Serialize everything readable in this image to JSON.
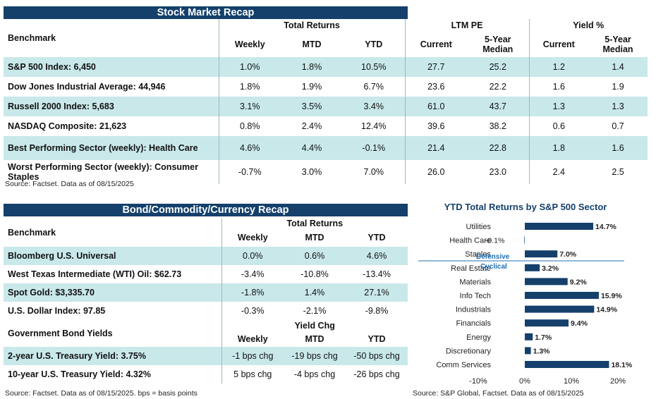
{
  "stock": {
    "title": "Stock Market Recap",
    "header": {
      "benchmark": "Benchmark",
      "total_returns": "Total Returns",
      "ltm_pe": "LTM PE",
      "yield": "Yield %",
      "weekly": "Weekly",
      "mtd": "MTD",
      "ytd": "YTD",
      "current": "Current",
      "median": "5-Year Median",
      "current2": "Current",
      "median2": "5-Year Median"
    },
    "rows": [
      {
        "label": "S&P 500 Index: 6,450",
        "weekly": "1.0%",
        "mtd": "1.8%",
        "ytd": "10.5%",
        "pe_cur": "27.7",
        "pe_med": "25.2",
        "y_cur": "1.2",
        "y_med": "1.4"
      },
      {
        "label": "Dow Jones Industrial Average: 44,946",
        "weekly": "1.8%",
        "mtd": "1.9%",
        "ytd": "6.7%",
        "pe_cur": "23.6",
        "pe_med": "22.2",
        "y_cur": "1.6",
        "y_med": "1.9"
      },
      {
        "label": "Russell 2000 Index: 5,683",
        "weekly": "3.1%",
        "mtd": "3.5%",
        "ytd": "3.4%",
        "pe_cur": "61.0",
        "pe_med": "43.7",
        "y_cur": "1.3",
        "y_med": "1.3"
      },
      {
        "label": "NASDAQ Composite: 21,623",
        "weekly": "0.8%",
        "mtd": "2.4%",
        "ytd": "12.4%",
        "pe_cur": "39.6",
        "pe_med": "38.2",
        "y_cur": "0.6",
        "y_med": "0.7"
      },
      {
        "label": "Best Performing Sector (weekly): Health Care",
        "weekly": "4.6%",
        "mtd": "4.4%",
        "ytd": "-0.1%",
        "pe_cur": "21.4",
        "pe_med": "22.8",
        "y_cur": "1.8",
        "y_med": "1.6"
      },
      {
        "label": "Worst Performing Sector (weekly): Consumer Staples",
        "weekly": "-0.7%",
        "mtd": "3.0%",
        "ytd": "7.0%",
        "pe_cur": "26.0",
        "pe_med": "23.0",
        "y_cur": "2.4",
        "y_med": "2.5"
      }
    ],
    "source": "Source: Factset. Data as of 08/15/2025"
  },
  "bond": {
    "title": "Bond/Commodity/Currency Recap",
    "header": {
      "benchmark": "Benchmark",
      "total_returns": "Total Returns",
      "weekly": "Weekly",
      "mtd": "MTD",
      "ytd": "YTD"
    },
    "rows": [
      {
        "label": "Bloomberg U.S. Universal",
        "weekly": "0.0%",
        "mtd": "0.6%",
        "ytd": "4.6%"
      },
      {
        "label": "West Texas Intermediate (WTI) Oil: $62.73",
        "weekly": "-3.4%",
        "mtd": "-10.8%",
        "ytd": "-13.4%"
      },
      {
        "label": "Spot Gold: $3,335.70",
        "weekly": "-1.8%",
        "mtd": "1.4%",
        "ytd": "27.1%"
      },
      {
        "label": "U.S. Dollar Index: 97.85",
        "weekly": "-0.3%",
        "mtd": "-2.1%",
        "ytd": "-9.8%"
      }
    ],
    "gov_header": {
      "label": "Government Bond Yields",
      "yield_chg": "Yield Chg",
      "weekly": "Weekly",
      "mtd": "MTD",
      "ytd": "YTD"
    },
    "gov_rows": [
      {
        "label": "2-year U.S. Treasury Yield: 3.75%",
        "weekly": "-1 bps chg",
        "mtd": "-19 bps chg",
        "ytd": "-50 bps chg"
      },
      {
        "label": "10-year U.S. Treasury Yield: 4.32%",
        "weekly": "5 bps chg",
        "mtd": "-4 bps chg",
        "ytd": "-26 bps chg"
      }
    ],
    "source": "Source: Factset. Data as of 08/15/2025. bps = basis points"
  },
  "sector_chart": {
    "source": "Source: S&P Global, Factset. Data as of 08/15/2025",
    "defensive_label": "Defensive",
    "cyclical_label": "Cyclical",
    "bar_color": "#14406b",
    "group_label_color": "#1f6fb5"
  },
  "chart_data": {
    "type": "bar",
    "orientation": "horizontal",
    "title": "YTD Total Returns by S&P 500 Sector",
    "categories": [
      "Utilities",
      "Health Care",
      "Staples",
      "Real Estate",
      "Materials",
      "Info Tech",
      "Industrials",
      "Financials",
      "Energy",
      "Discretionary",
      "Comm Services"
    ],
    "values": [
      14.7,
      -0.1,
      7.0,
      3.2,
      9.2,
      15.9,
      14.9,
      9.4,
      1.7,
      1.3,
      18.1
    ],
    "value_labels": [
      "14.7%",
      "-0.1%",
      "7.0%",
      "3.2%",
      "9.2%",
      "15.9%",
      "14.9%",
      "9.4%",
      "1.7%",
      "1.3%",
      "18.1%"
    ],
    "xlim": [
      -10,
      20
    ],
    "xticks": [
      "-10%",
      "0%",
      "10%",
      "20%"
    ],
    "grid": false,
    "xlabel": "",
    "ylabel": ""
  }
}
